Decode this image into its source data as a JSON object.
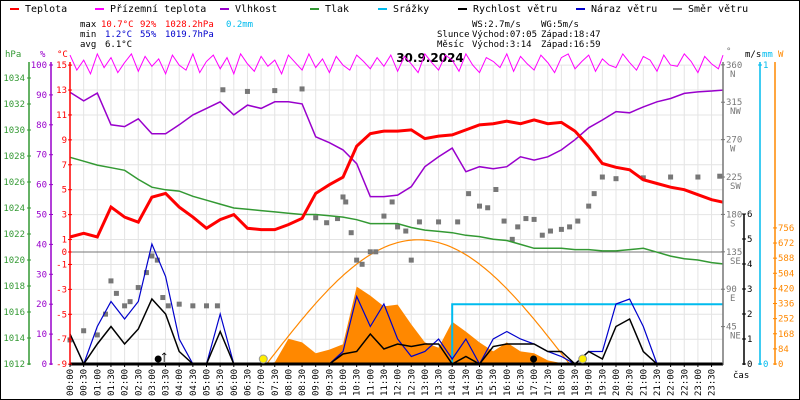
{
  "legend": [
    {
      "label": "Teplota",
      "color": "#ff0000"
    },
    {
      "label": "Přízemní teplota",
      "color": "#ff00ff"
    },
    {
      "label": "Vlhkost",
      "color": "#9900cc"
    },
    {
      "label": "Tlak",
      "color": "#339933"
    },
    {
      "label": "Srážky",
      "color": "#00bbee"
    },
    {
      "label": "Rychlost větru",
      "color": "#000000"
    },
    {
      "label": "Náraz větru",
      "color": "#0000cc"
    },
    {
      "label": "Směr větru",
      "color": "#777777"
    }
  ],
  "stats": {
    "max_label": "max",
    "max_temp": "10.7°C",
    "max_hum": "92%",
    "max_press": "1028.2hPa",
    "max_rain": "0.2mm",
    "min_label": "min",
    "min_temp": "1.2°C",
    "min_hum": "55%",
    "min_press": "1019.7hPa",
    "avg_label": "avg",
    "avg_temp": "6.1°C",
    "ws": "WS:2.7m/s",
    "wg": "WG:5m/s",
    "sun_label": "Slunce",
    "sun_rise": "Východ:07:05",
    "sun_set": "Západ:18:47",
    "moon_label": "Měsíc",
    "moon_rise": "Východ:3:14",
    "moon_set": "Západ:16:59"
  },
  "colors": {
    "temp": "#ff0000",
    "feels": "#ff00ff",
    "hum": "#9900cc",
    "press": "#339933",
    "rain": "#00bbee",
    "wind": "#000000",
    "gust": "#0000cc",
    "dir": "#777777",
    "solar": "#ff8800"
  },
  "chart_data": {
    "type": "line",
    "title": "30.9.2024",
    "xlabel": "čas",
    "x_range_hours": [
      0,
      24
    ],
    "x_tick_labels": [
      "00:00",
      "00:30",
      "01:00",
      "01:30",
      "02:00",
      "02:30",
      "03:00",
      "03:30",
      "04:00",
      "04:30",
      "05:00",
      "05:30",
      "06:00",
      "06:30",
      "07:00",
      "07:30",
      "08:00",
      "08:30",
      "09:00",
      "09:30",
      "10:00",
      "10:30",
      "11:00",
      "11:30",
      "12:00",
      "12:30",
      "13:00",
      "13:30",
      "14:00",
      "14:30",
      "15:00",
      "15:30",
      "16:00",
      "16:30",
      "17:00",
      "17:30",
      "18:00",
      "18:30",
      "19:00",
      "19:30",
      "20:00",
      "20:30",
      "21:00",
      "21:30",
      "22:00",
      "22:30",
      "23:00",
      "23:30"
    ],
    "axes": {
      "press": {
        "unit": "hPa",
        "range": [
          1012,
          1034
        ],
        "ticks": [
          "1012",
          "1014",
          "1016",
          "1018",
          "1020",
          "1022",
          "1024",
          "1026",
          "1028",
          "1030",
          "1032",
          "1034"
        ]
      },
      "hum": {
        "unit": "%",
        "range": [
          0,
          100
        ],
        "ticks": [
          "0",
          "10",
          "20",
          "30",
          "40",
          "50",
          "60",
          "70",
          "80",
          "90",
          "100"
        ]
      },
      "temp": {
        "unit": "°C",
        "range": [
          -9,
          15
        ],
        "ticks": [
          "-9",
          "-7",
          "-5",
          "-3",
          "-1",
          "0",
          "1",
          "3",
          "5",
          "7",
          "9",
          "11",
          "13",
          "15"
        ]
      },
      "dir": {
        "unit": "°",
        "range": [
          0,
          360
        ],
        "ticks": [
          [
            "45",
            "NE"
          ],
          [
            "90",
            "E"
          ],
          [
            "135",
            "SE"
          ],
          [
            "180",
            "S"
          ],
          [
            "225",
            "SW"
          ],
          [
            "270",
            "W"
          ],
          [
            "315",
            "NW"
          ],
          [
            "360",
            "N"
          ]
        ]
      },
      "wind": {
        "unit": "m/s",
        "range": [
          0,
          6
        ],
        "ticks": [
          "0",
          "1",
          "2",
          "3",
          "4",
          "5",
          "6"
        ]
      },
      "rain": {
        "unit": "mm",
        "range": [
          0,
          1
        ],
        "ticks": [
          "0",
          "1"
        ]
      },
      "solar": {
        "unit": "W",
        "range": [
          0,
          756
        ],
        "ticks": [
          "0",
          "84",
          "168",
          "252",
          "336",
          "420",
          "504",
          "588",
          "672",
          "756"
        ]
      }
    },
    "half_hour_step": 0.5,
    "series": [
      {
        "name": "Teplota",
        "key": "temp",
        "values": [
          1.2,
          1.5,
          1.2,
          3.6,
          2.8,
          2.4,
          4.4,
          4.7,
          3.6,
          2.8,
          1.9,
          2.6,
          3.0,
          1.9,
          1.8,
          1.8,
          2.2,
          2.7,
          4.7,
          5.4,
          6.0,
          8.5,
          9.5,
          9.7,
          9.7,
          9.8,
          9.1,
          9.3,
          9.4,
          9.8,
          10.2,
          10.3,
          10.5,
          10.3,
          10.6,
          10.3,
          10.4,
          9.7,
          8.5,
          7.1,
          6.8,
          6.6,
          5.8,
          5.5,
          5.2,
          5.0,
          4.6,
          4.2,
          4.0
        ]
      },
      {
        "name": "Vlhkost",
        "key": "hum",
        "values": [
          90.9,
          88,
          90.6,
          80,
          79.4,
          82,
          77,
          77,
          80,
          83.3,
          85.5,
          87.7,
          83.3,
          86.6,
          85.5,
          87.7,
          87.7,
          87,
          76,
          74,
          71.6,
          67,
          56,
          56,
          56.5,
          59.3,
          66,
          69.3,
          72.2,
          64.3,
          66,
          65.3,
          66,
          69.3,
          68.2,
          69.3,
          71.6,
          75,
          79,
          81.6,
          84.4,
          84,
          86,
          87.7,
          88.8,
          90.5,
          91,
          91.3,
          91.6
        ]
      },
      {
        "name": "Tlak",
        "key": "press",
        "values": [
          1027.9,
          1027.6,
          1027.3,
          1027.1,
          1026.9,
          1026.2,
          1025.6,
          1025.4,
          1025.3,
          1024.9,
          1024.6,
          1024.3,
          1024.0,
          1023.9,
          1023.8,
          1023.7,
          1023.6,
          1023.5,
          1023.5,
          1023.4,
          1023.3,
          1023.1,
          1022.8,
          1022.8,
          1022.8,
          1022.5,
          1022.3,
          1022.2,
          1022.1,
          1021.9,
          1021.8,
          1021.6,
          1021.5,
          1021.2,
          1020.9,
          1020.9,
          1020.9,
          1020.8,
          1020.8,
          1020.7,
          1020.7,
          1020.8,
          1020.9,
          1020.6,
          1020.3,
          1020.1,
          1020.0,
          1019.8,
          1019.7
        ]
      },
      {
        "name": "Přízemní teplota",
        "key": "feels",
        "values": [
          15.8,
          14.6,
          15.4,
          14.3,
          15.9,
          14.8,
          15.6,
          14.4,
          15.2,
          15.9,
          14.5,
          15.7,
          14.9,
          15.5,
          14.3,
          15.8,
          15.0,
          14.6,
          15.9,
          14.4,
          15.3,
          15.8,
          14.7,
          15.6,
          14.3,
          15.9,
          15.1,
          14.5,
          15.7,
          14.9,
          15.4,
          14.3,
          15.8,
          15.2,
          14.6,
          15.9,
          14.8,
          15.5,
          14.4,
          15.7,
          15.0,
          14.6,
          15.8,
          15.3,
          14.7,
          15.6,
          14.9,
          15.8,
          14.5,
          15.7,
          15.1,
          14.4,
          15.9,
          15.2,
          14.6,
          15.8,
          15.4,
          14.5,
          15.9,
          15.0,
          14.4,
          15.6,
          15.3,
          14.8,
          15.9,
          14.5,
          15.7,
          15.1,
          14.6,
          15.8,
          15.2,
          14.4,
          15.6,
          15.9,
          14.7,
          15.3,
          15.8,
          14.5,
          15.5,
          15.0,
          14.8,
          15.9,
          15.2,
          14.6,
          15.7,
          15.4,
          14.5,
          15.8,
          15.0,
          14.9,
          15.9,
          15.3,
          14.4,
          15.7,
          15.1,
          14.7,
          15.8
        ]
      },
      {
        "name": "Rychlost větru",
        "key": "wind",
        "values": [
          1.2,
          0,
          0.8,
          1.5,
          0.8,
          1.4,
          2.6,
          2.0,
          0.5,
          0,
          0,
          1.3,
          0,
          0,
          0,
          0,
          0,
          0,
          0,
          0,
          0.4,
          0.5,
          1.2,
          0.6,
          0.8,
          0.7,
          0.8,
          0.8,
          0,
          0.3,
          0,
          0.7,
          0.8,
          0.8,
          0.8,
          0.5,
          0.5,
          0,
          0.5,
          0.2,
          1.5,
          1.8,
          0.5,
          0,
          0,
          0,
          0,
          0,
          0
        ]
      },
      {
        "name": "Náraz větru",
        "key": "gust",
        "values": [
          1.2,
          0,
          1.5,
          2.5,
          1.8,
          2.5,
          4.8,
          3.5,
          1.0,
          0,
          0,
          2.0,
          0,
          0,
          0,
          0,
          0,
          0,
          0,
          0,
          0.5,
          2.7,
          1.5,
          2.4,
          1.0,
          0.3,
          0.5,
          1.0,
          0.2,
          1.0,
          0,
          1.0,
          1.3,
          1.0,
          0.8,
          0.5,
          0.3,
          0,
          0.5,
          0.5,
          2.4,
          2.6,
          1.5,
          0,
          0,
          0,
          0,
          0,
          0
        ]
      },
      {
        "name": "Sluneční záření",
        "key": "solar",
        "values": [
          0,
          0,
          0,
          0,
          0,
          0,
          0,
          0,
          0,
          0,
          0,
          0,
          0,
          0,
          0,
          10,
          140,
          120,
          60,
          80,
          110,
          430,
          380,
          320,
          330,
          220,
          120,
          90,
          235,
          180,
          120,
          70,
          120,
          70,
          60,
          20,
          5,
          0,
          0,
          0,
          0,
          0,
          0,
          0,
          0,
          0,
          0,
          0,
          0
        ]
      },
      {
        "name": "Srážky",
        "key": "rain",
        "step_points": [
          [
            0,
            0
          ],
          [
            14.0,
            0
          ],
          [
            14.0,
            0.2
          ],
          [
            24,
            0.2
          ]
        ]
      },
      {
        "name": "Teoretické záření",
        "key": "solar_theory",
        "start_h": 7.2,
        "end_h": 18.3,
        "peak": 690
      }
    ],
    "wind_direction_points": [
      [
        0,
        29
      ],
      [
        0.5,
        40
      ],
      [
        1.0,
        35
      ],
      [
        1.3,
        60
      ],
      [
        1.5,
        100
      ],
      [
        1.7,
        85
      ],
      [
        2.0,
        70
      ],
      [
        2.2,
        75
      ],
      [
        2.5,
        92
      ],
      [
        2.8,
        110
      ],
      [
        3.0,
        130
      ],
      [
        3.2,
        125
      ],
      [
        3.4,
        80
      ],
      [
        3.6,
        70
      ],
      [
        4.0,
        72
      ],
      [
        4.5,
        70
      ],
      [
        5.0,
        70
      ],
      [
        5.4,
        70
      ],
      [
        5.6,
        330
      ],
      [
        6.5,
        328
      ],
      [
        7.5,
        329
      ],
      [
        8.5,
        331
      ],
      [
        9.0,
        176
      ],
      [
        9.4,
        170
      ],
      [
        9.8,
        175
      ],
      [
        10.0,
        201
      ],
      [
        10.1,
        195
      ],
      [
        10.3,
        158
      ],
      [
        10.5,
        125
      ],
      [
        10.7,
        120
      ],
      [
        11.0,
        135
      ],
      [
        11.2,
        135
      ],
      [
        11.5,
        178
      ],
      [
        11.8,
        195
      ],
      [
        12.0,
        165
      ],
      [
        12.3,
        160
      ],
      [
        12.5,
        125
      ],
      [
        12.8,
        171
      ],
      [
        13.5,
        171
      ],
      [
        14.2,
        171
      ],
      [
        14.6,
        205
      ],
      [
        15.0,
        190
      ],
      [
        15.3,
        188
      ],
      [
        15.6,
        210
      ],
      [
        15.9,
        172
      ],
      [
        16.2,
        150
      ],
      [
        16.4,
        165
      ],
      [
        16.7,
        175
      ],
      [
        17.0,
        174
      ],
      [
        17.3,
        155
      ],
      [
        17.6,
        160
      ],
      [
        18.0,
        162
      ],
      [
        18.3,
        165
      ],
      [
        18.6,
        172
      ],
      [
        19.0,
        190
      ],
      [
        19.2,
        205
      ],
      [
        19.5,
        225
      ],
      [
        20.0,
        223
      ],
      [
        21.0,
        224
      ],
      [
        22.0,
        225
      ],
      [
        23.0,
        225
      ],
      [
        23.8,
        226
      ]
    ],
    "markers": {
      "sunrise_h": 7.08,
      "sunset_h": 18.78,
      "moonrise_h": 3.23,
      "moonset_h": 16.98
    }
  }
}
